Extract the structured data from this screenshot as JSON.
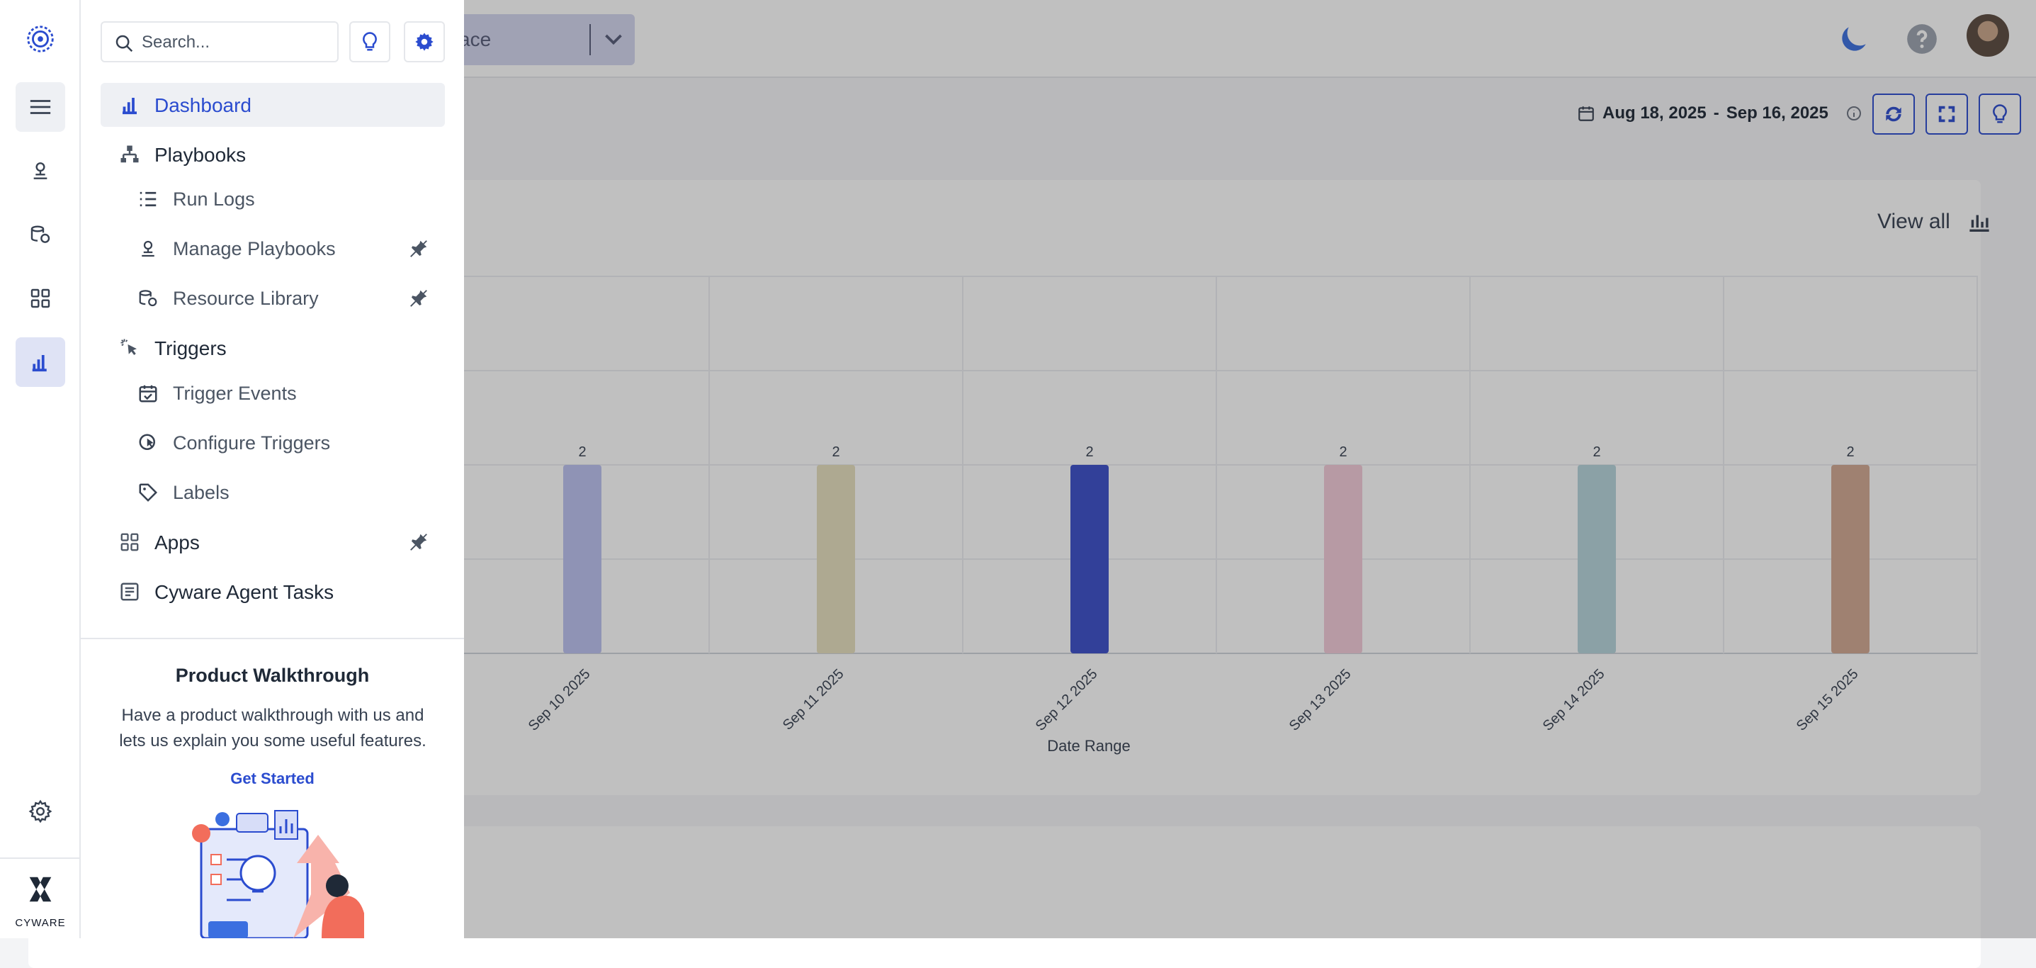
{
  "header": {
    "workspace_text": "ace",
    "date_start": "Aug 18, 2025",
    "date_sep": "-",
    "date_end": "Sep 16, 2025"
  },
  "chart_card": {
    "view_all_label": "View all"
  },
  "chart_data": {
    "type": "bar",
    "categories": [
      "Sep 10 2025",
      "Sep 11 2025",
      "Sep 12 2025",
      "Sep 13 2025",
      "Sep 14 2025",
      "Sep 15 2025"
    ],
    "values": [
      2,
      2,
      2,
      2,
      2,
      2
    ],
    "colors": [
      "#bcc1f0",
      "#e7dfbe",
      "#3b4ec9",
      "#f3cbd8",
      "#b6d5dc",
      "#d2a892"
    ],
    "xlabel": "Date Range",
    "ylim": [
      0,
      4
    ],
    "grid": true
  },
  "search": {
    "placeholder": "Search..."
  },
  "nav": {
    "dashboard": "Dashboard",
    "playbooks": "Playbooks",
    "run_logs": "Run Logs",
    "manage_playbooks": "Manage Playbooks",
    "resource_library": "Resource Library",
    "triggers": "Triggers",
    "trigger_events": "Trigger Events",
    "configure_triggers": "Configure Triggers",
    "labels": "Labels",
    "apps": "Apps",
    "agent_tasks": "Cyware Agent Tasks"
  },
  "walkthrough": {
    "title": "Product Walkthrough",
    "description": "Have a product walkthrough with us and lets us explain you some useful features.",
    "cta": "Get Started"
  },
  "brand": {
    "name": "CYWARE"
  },
  "theme": {
    "accent": "#2b4ccf",
    "active_bg": "#eef0f4"
  }
}
